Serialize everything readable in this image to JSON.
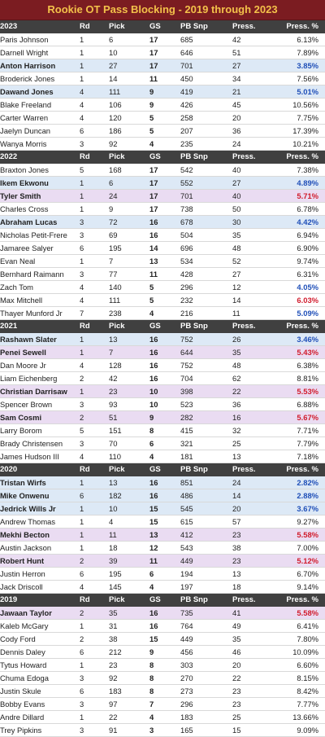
{
  "title": "Rookie OT Pass Blocking - 2019 through 2023",
  "columns": [
    "Rd",
    "Pick",
    "GS",
    "PB Snp",
    "Press.",
    "Press. %"
  ],
  "sections": [
    {
      "year": "2023",
      "rows": [
        {
          "name": "Paris Johnson",
          "rd": "1",
          "pick": "6",
          "gs": "17",
          "pb": "685",
          "press": "42",
          "pct": "6.13%"
        },
        {
          "name": "Darnell Wright",
          "rd": "1",
          "pick": "10",
          "gs": "17",
          "pb": "646",
          "press": "51",
          "pct": "7.89%"
        },
        {
          "name": "Anton Harrison",
          "rd": "1",
          "pick": "27",
          "gs": "17",
          "pb": "701",
          "press": "27",
          "pct": "3.85%",
          "hl": "blue",
          "mark": "blue"
        },
        {
          "name": "Broderick Jones",
          "rd": "1",
          "pick": "14",
          "gs": "11",
          "pb": "450",
          "press": "34",
          "pct": "7.56%"
        },
        {
          "name": "Dawand Jones",
          "rd": "4",
          "pick": "111",
          "gs": "9",
          "pb": "419",
          "press": "21",
          "pct": "5.01%",
          "hl": "blue",
          "mark": "blue"
        },
        {
          "name": "Blake Freeland",
          "rd": "4",
          "pick": "106",
          "gs": "9",
          "pb": "426",
          "press": "45",
          "pct": "10.56%"
        },
        {
          "name": "Carter Warren",
          "rd": "4",
          "pick": "120",
          "gs": "5",
          "pb": "258",
          "press": "20",
          "pct": "7.75%"
        },
        {
          "name": "Jaelyn Duncan",
          "rd": "6",
          "pick": "186",
          "gs": "5",
          "pb": "207",
          "press": "36",
          "pct": "17.39%"
        },
        {
          "name": "Wanya Morris",
          "rd": "3",
          "pick": "92",
          "gs": "4",
          "pb": "235",
          "press": "24",
          "pct": "10.21%"
        }
      ]
    },
    {
      "year": "2022",
      "rows": [
        {
          "name": "Braxton Jones",
          "rd": "5",
          "pick": "168",
          "gs": "17",
          "pb": "542",
          "press": "40",
          "pct": "7.38%"
        },
        {
          "name": "Ikem Ekwonu",
          "rd": "1",
          "pick": "6",
          "gs": "17",
          "pb": "552",
          "press": "27",
          "pct": "4.89%",
          "hl": "blue",
          "mark": "blue"
        },
        {
          "name": "Tyler Smith",
          "rd": "1",
          "pick": "24",
          "gs": "17",
          "pb": "701",
          "press": "40",
          "pct": "5.71%",
          "hl": "purple",
          "mark": "red"
        },
        {
          "name": "Charles Cross",
          "rd": "1",
          "pick": "9",
          "gs": "17",
          "pb": "738",
          "press": "50",
          "pct": "6.78%"
        },
        {
          "name": "Abraham Lucas",
          "rd": "3",
          "pick": "72",
          "gs": "16",
          "pb": "678",
          "press": "30",
          "pct": "4.42%",
          "hl": "blue",
          "mark": "blue"
        },
        {
          "name": "Nicholas Petit-Frere",
          "rd": "3",
          "pick": "69",
          "gs": "16",
          "pb": "504",
          "press": "35",
          "pct": "6.94%"
        },
        {
          "name": "Jamaree Salyer",
          "rd": "6",
          "pick": "195",
          "gs": "14",
          "pb": "696",
          "press": "48",
          "pct": "6.90%"
        },
        {
          "name": "Evan Neal",
          "rd": "1",
          "pick": "7",
          "gs": "13",
          "pb": "534",
          "press": "52",
          "pct": "9.74%"
        },
        {
          "name": "Bernhard Raimann",
          "rd": "3",
          "pick": "77",
          "gs": "11",
          "pb": "428",
          "press": "27",
          "pct": "6.31%"
        },
        {
          "name": "Zach Tom",
          "rd": "4",
          "pick": "140",
          "gs": "5",
          "pb": "296",
          "press": "12",
          "pct": "4.05%",
          "mark": "blue"
        },
        {
          "name": "Max Mitchell",
          "rd": "4",
          "pick": "111",
          "gs": "5",
          "pb": "232",
          "press": "14",
          "pct": "6.03%",
          "mark": "red"
        },
        {
          "name": "Thayer Munford Jr",
          "rd": "7",
          "pick": "238",
          "gs": "4",
          "pb": "216",
          "press": "11",
          "pct": "5.09%",
          "mark": "blue"
        }
      ]
    },
    {
      "year": "2021",
      "rows": [
        {
          "name": "Rashawn Slater",
          "rd": "1",
          "pick": "13",
          "gs": "16",
          "pb": "752",
          "press": "26",
          "pct": "3.46%",
          "hl": "blue",
          "mark": "blue"
        },
        {
          "name": "Penei Sewell",
          "rd": "1",
          "pick": "7",
          "gs": "16",
          "pb": "644",
          "press": "35",
          "pct": "5.43%",
          "hl": "purple",
          "mark": "red"
        },
        {
          "name": "Dan Moore Jr",
          "rd": "4",
          "pick": "128",
          "gs": "16",
          "pb": "752",
          "press": "48",
          "pct": "6.38%"
        },
        {
          "name": "Liam Eichenberg",
          "rd": "2",
          "pick": "42",
          "gs": "16",
          "pb": "704",
          "press": "62",
          "pct": "8.81%"
        },
        {
          "name": "Christian Darrisaw",
          "rd": "1",
          "pick": "23",
          "gs": "10",
          "pb": "398",
          "press": "22",
          "pct": "5.53%",
          "hl": "purple",
          "mark": "red"
        },
        {
          "name": "Spencer Brown",
          "rd": "3",
          "pick": "93",
          "gs": "10",
          "pb": "523",
          "press": "36",
          "pct": "6.88%"
        },
        {
          "name": "Sam Cosmi",
          "rd": "2",
          "pick": "51",
          "gs": "9",
          "pb": "282",
          "press": "16",
          "pct": "5.67%",
          "hl": "purple",
          "mark": "red"
        },
        {
          "name": "Larry Borom",
          "rd": "5",
          "pick": "151",
          "gs": "8",
          "pb": "415",
          "press": "32",
          "pct": "7.71%"
        },
        {
          "name": "Brady Christensen",
          "rd": "3",
          "pick": "70",
          "gs": "6",
          "pb": "321",
          "press": "25",
          "pct": "7.79%"
        },
        {
          "name": "James Hudson III",
          "rd": "4",
          "pick": "110",
          "gs": "4",
          "pb": "181",
          "press": "13",
          "pct": "7.18%"
        }
      ]
    },
    {
      "year": "2020",
      "rows": [
        {
          "name": "Tristan Wirfs",
          "rd": "1",
          "pick": "13",
          "gs": "16",
          "pb": "851",
          "press": "24",
          "pct": "2.82%",
          "hl": "blue",
          "mark": "blue"
        },
        {
          "name": "Mike Onwenu",
          "rd": "6",
          "pick": "182",
          "gs": "16",
          "pb": "486",
          "press": "14",
          "pct": "2.88%",
          "hl": "blue",
          "mark": "blue"
        },
        {
          "name": "Jedrick Wills Jr",
          "rd": "1",
          "pick": "10",
          "gs": "15",
          "pb": "545",
          "press": "20",
          "pct": "3.67%",
          "hl": "blue",
          "mark": "blue"
        },
        {
          "name": "Andrew Thomas",
          "rd": "1",
          "pick": "4",
          "gs": "15",
          "pb": "615",
          "press": "57",
          "pct": "9.27%"
        },
        {
          "name": "Mekhi Becton",
          "rd": "1",
          "pick": "11",
          "gs": "13",
          "pb": "412",
          "press": "23",
          "pct": "5.58%",
          "hl": "purple",
          "mark": "red"
        },
        {
          "name": "Austin Jackson",
          "rd": "1",
          "pick": "18",
          "gs": "12",
          "pb": "543",
          "press": "38",
          "pct": "7.00%"
        },
        {
          "name": "Robert Hunt",
          "rd": "2",
          "pick": "39",
          "gs": "11",
          "pb": "449",
          "press": "23",
          "pct": "5.12%",
          "hl": "purple",
          "mark": "red"
        },
        {
          "name": "Justin Herron",
          "rd": "6",
          "pick": "195",
          "gs": "6",
          "pb": "194",
          "press": "13",
          "pct": "6.70%"
        },
        {
          "name": "Jack Driscoll",
          "rd": "4",
          "pick": "145",
          "gs": "4",
          "pb": "197",
          "press": "18",
          "pct": "9.14%"
        }
      ]
    },
    {
      "year": "2019",
      "rows": [
        {
          "name": "Jawaan Taylor",
          "rd": "2",
          "pick": "35",
          "gs": "16",
          "pb": "735",
          "press": "41",
          "pct": "5.58%",
          "hl": "purple",
          "mark": "red"
        },
        {
          "name": "Kaleb McGary",
          "rd": "1",
          "pick": "31",
          "gs": "16",
          "pb": "764",
          "press": "49",
          "pct": "6.41%"
        },
        {
          "name": "Cody Ford",
          "rd": "2",
          "pick": "38",
          "gs": "15",
          "pb": "449",
          "press": "35",
          "pct": "7.80%"
        },
        {
          "name": "Dennis Daley",
          "rd": "6",
          "pick": "212",
          "gs": "9",
          "pb": "456",
          "press": "46",
          "pct": "10.09%"
        },
        {
          "name": "Tytus Howard",
          "rd": "1",
          "pick": "23",
          "gs": "8",
          "pb": "303",
          "press": "20",
          "pct": "6.60%"
        },
        {
          "name": "Chuma Edoga",
          "rd": "3",
          "pick": "92",
          "gs": "8",
          "pb": "270",
          "press": "22",
          "pct": "8.15%"
        },
        {
          "name": "Justin Skule",
          "rd": "6",
          "pick": "183",
          "gs": "8",
          "pb": "273",
          "press": "23",
          "pct": "8.42%"
        },
        {
          "name": "Bobby Evans",
          "rd": "3",
          "pick": "97",
          "gs": "7",
          "pb": "296",
          "press": "23",
          "pct": "7.77%"
        },
        {
          "name": "Andre Dillard",
          "rd": "1",
          "pick": "22",
          "gs": "4",
          "pb": "183",
          "press": "25",
          "pct": "13.66%"
        },
        {
          "name": "Trey Pipkins",
          "rd": "3",
          "pick": "91",
          "gs": "3",
          "pb": "165",
          "press": "15",
          "pct": "9.09%"
        }
      ]
    }
  ],
  "colors": {
    "title_bg": "#7b1c21",
    "title_text": "#f3c14a",
    "header_bg": "#404040",
    "highlight_blue": "#dde9f6",
    "highlight_purple": "#eadcf2",
    "good_text": "#1f4fb8",
    "bad_text": "#d11b2c"
  }
}
